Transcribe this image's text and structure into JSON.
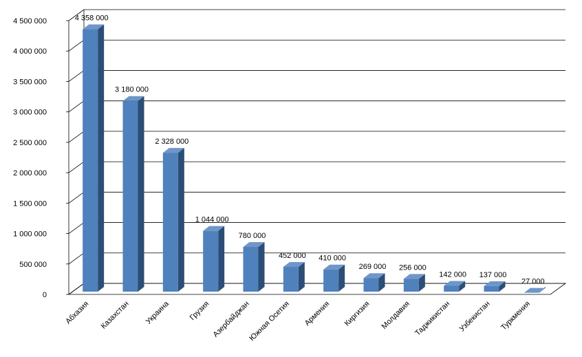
{
  "chart_data": {
    "type": "bar",
    "title": "",
    "xlabel": "",
    "ylabel": "",
    "ylim": [
      0,
      4500000
    ],
    "y_ticks": [
      "0",
      "500 000",
      "1 000 000",
      "1 500 000",
      "2 000 000",
      "2 500 000",
      "3 000 000",
      "3 500 000",
      "4 000 000",
      "4 500 000"
    ],
    "grid": true,
    "style": "3d-column",
    "categories": [
      "Абхазия",
      "Казахстан",
      "Украина",
      "Грузия",
      "Азербайджан",
      "Южная Осетия",
      "Армения",
      "Киргизия",
      "Молдавия",
      "Таджикистан",
      "Узбекистан",
      "Туркмения"
    ],
    "values": [
      4358000,
      3180000,
      2328000,
      1044000,
      780000,
      452000,
      410000,
      269000,
      256000,
      142000,
      137000,
      27000
    ],
    "value_labels": [
      "4 358 000",
      "3 180 000",
      "2 328 000",
      "1 044 000",
      "780 000",
      "452 000",
      "410 000",
      "269 000",
      "256 000",
      "142 000",
      "137 000",
      "27 000"
    ],
    "colors": {
      "bar_front": "#4F81BD",
      "bar_side": "#2C4D75",
      "bar_top": "#6F96C8",
      "grid": "#000000"
    }
  }
}
